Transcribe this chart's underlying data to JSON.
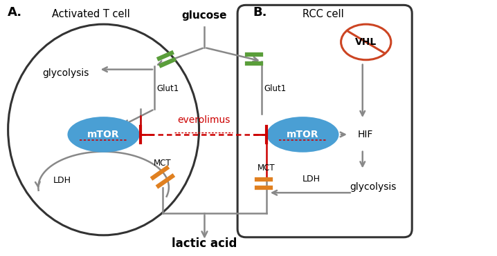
{
  "bg_color": "#ffffff",
  "label_A": "A.",
  "label_B": "B.",
  "cell_A_label": "Activated T cell",
  "cell_B_label": "RCC cell",
  "mtor_label": "mTOR",
  "everolimus_label": "everolimus",
  "glucose_label": "glucose",
  "lactic_acid_label": "lactic acid",
  "glut1_label": "Glut1",
  "glycolysis_label_A": "glycolysis",
  "glycolysis_label_B": "glycolysis",
  "ldh_label_A": "LDH",
  "ldh_label_B": "LDH",
  "mct_label_A": "MCT",
  "mct_label_B": "MCT",
  "hif_label": "HIF",
  "vhl_label": "VHL",
  "mtor_color": "#4a9fd4",
  "green_bar_color": "#5a9e3a",
  "orange_bar_color": "#e08020",
  "red_color": "#cc0000",
  "cell_color": "#333333",
  "arrow_color": "#888888",
  "vhl_color": "#cc4422"
}
